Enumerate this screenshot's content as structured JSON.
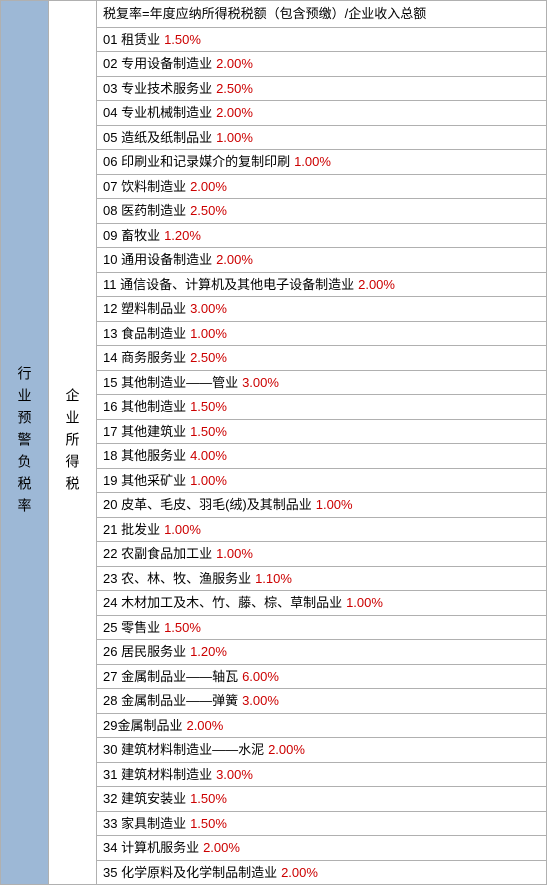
{
  "leftHeader": "行业预警负税率",
  "midHeader": "企业所得税",
  "formulaHeader": "税复率=年度应纳所得税税额（包含预缴）/企业收入总额",
  "labelColor": "#000000",
  "valueColor": "#cc0000",
  "leftBgColor": "#9db8d6",
  "borderColor": "#b0b0b0",
  "fontSize": 13,
  "rows": [
    {
      "num": "01",
      "label": "租赁业",
      "value": "1.50%"
    },
    {
      "num": "02",
      "label": "专用设备制造业",
      "value": "2.00%"
    },
    {
      "num": "03",
      "label": "专业技术服务业",
      "value": "2.50%"
    },
    {
      "num": "04",
      "label": "专业机械制造业",
      "value": "2.00%"
    },
    {
      "num": "05",
      "label": "造纸及纸制品业",
      "value": "1.00%"
    },
    {
      "num": "06",
      "label": "印刷业和记录媒介的复制印刷",
      "value": "1.00%"
    },
    {
      "num": "07",
      "label": "饮料制造业",
      "value": "2.00%"
    },
    {
      "num": "08",
      "label": "医药制造业",
      "value": "2.50%"
    },
    {
      "num": "09",
      "label": "畜牧业",
      "value": "1.20%"
    },
    {
      "num": "10",
      "label": "通用设备制造业",
      "value": "2.00%"
    },
    {
      "num": "11",
      "label": "通信设备、计算机及其他电子设备制造业",
      "value": "2.00%"
    },
    {
      "num": "12",
      "label": "塑料制品业",
      "value": "3.00%"
    },
    {
      "num": "13",
      "label": "食品制造业",
      "value": "1.00%"
    },
    {
      "num": "14",
      "label": "商务服务业",
      "value": "2.50%"
    },
    {
      "num": "15",
      "label": "其他制造业——管业",
      "value": "3.00%"
    },
    {
      "num": "16",
      "label": "其他制造业",
      "value": "1.50%"
    },
    {
      "num": "17",
      "label": "其他建筑业",
      "value": "1.50%"
    },
    {
      "num": "18",
      "label": "其他服务业",
      "value": "4.00%"
    },
    {
      "num": "19",
      "label": "其他采矿业",
      "value": "1.00%"
    },
    {
      "num": "20",
      "label": "皮革、毛皮、羽毛(绒)及其制品业",
      "value": "1.00%"
    },
    {
      "num": "21",
      "label": "批发业",
      "value": "1.00%"
    },
    {
      "num": "22",
      "label": "农副食品加工业",
      "value": "1.00%"
    },
    {
      "num": "23",
      "label": "农、林、牧、渔服务业",
      "value": "1.10%"
    },
    {
      "num": "24",
      "label": "木材加工及木、竹、藤、棕、草制品业",
      "value": "1.00%"
    },
    {
      "num": "25",
      "label": "零售业",
      "value": "1.50%"
    },
    {
      "num": "26",
      "label": "居民服务业",
      "value": "1.20%"
    },
    {
      "num": "27",
      "label": "金属制品业——轴瓦",
      "value": "6.00%"
    },
    {
      "num": "28",
      "label": "金属制品业——弹簧",
      "value": "3.00%"
    },
    {
      "num": "29",
      "label": "金属制品业",
      "value": "2.00%",
      "nospace": true
    },
    {
      "num": "30",
      "label": "建筑材料制造业——水泥",
      "value": "2.00%"
    },
    {
      "num": "31",
      "label": "建筑材料制造业",
      "value": "3.00%"
    },
    {
      "num": "32",
      "label": "建筑安装业",
      "value": "1.50%"
    },
    {
      "num": "33",
      "label": "家具制造业",
      "value": "1.50%"
    },
    {
      "num": "34",
      "label": "计算机服务业",
      "value": "2.00%"
    },
    {
      "num": "35",
      "label": "化学原料及化学制品制造业",
      "value": "2.00%"
    }
  ]
}
